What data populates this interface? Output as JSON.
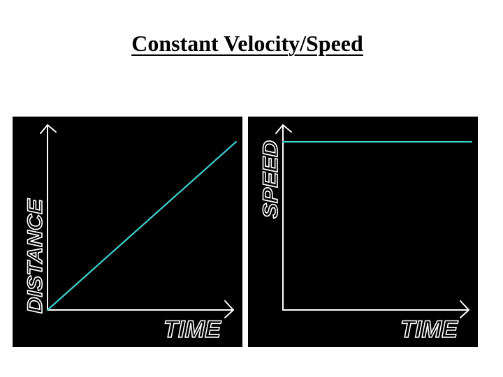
{
  "slide": {
    "title": "Constant Velocity/Speed"
  },
  "colors": {
    "background": "#ffffff",
    "panel": "#000000",
    "axis": "#ffffff",
    "line": "#3fd0d0"
  },
  "chart_data": [
    {
      "type": "line",
      "xlabel": "TIME",
      "ylabel": "DISTANCE",
      "grid": false,
      "x": [
        0,
        1
      ],
      "y": [
        0,
        1
      ],
      "xlim": [
        0,
        1
      ],
      "ylim": [
        0,
        1.1
      ]
    },
    {
      "type": "line",
      "xlabel": "TIME",
      "ylabel": "SPEED",
      "grid": false,
      "x": [
        0,
        1
      ],
      "y": [
        1,
        1
      ],
      "xlim": [
        0,
        1
      ],
      "ylim": [
        0,
        1.1
      ]
    }
  ]
}
